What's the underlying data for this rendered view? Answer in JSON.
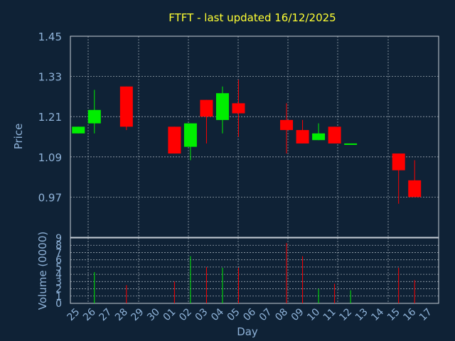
{
  "chart_data": {
    "type": "candlestick",
    "title": "FTFT - last updated 16/12/2025",
    "xlabel": "Day",
    "price_panel": {
      "ylabel": "Price",
      "ylim": [
        0.85,
        1.45
      ],
      "yticks": [
        "1.45",
        "1.33",
        "1.21",
        "1.09",
        "0.97"
      ],
      "ytick_values": [
        1.45,
        1.33,
        1.21,
        1.09,
        0.97
      ]
    },
    "volume_panel": {
      "ylabel": "Volume (0000)",
      "ylim": [
        0,
        9
      ],
      "yticks": [
        "9",
        "8",
        "7",
        "6",
        "5",
        "4",
        "3",
        "2",
        "1",
        "0"
      ]
    },
    "x_ticks": [
      "25",
      "26",
      "27",
      "28",
      "29",
      "30",
      "01",
      "02",
      "03",
      "04",
      "05",
      "06",
      "07",
      "08",
      "09",
      "10",
      "11",
      "12",
      "13",
      "14",
      "15",
      "16",
      "17"
    ],
    "colors": {
      "up": "#00ee00",
      "down": "#ff0000",
      "background": "#0f2236",
      "text": "#8fb3d9",
      "title": "#ffff33"
    },
    "candles": [
      {
        "day": "25",
        "open": 1.16,
        "high": 1.18,
        "low": 1.16,
        "close": 1.18,
        "volume": 0
      },
      {
        "day": "26",
        "open": 1.19,
        "high": 1.29,
        "low": 1.16,
        "close": 1.23,
        "volume": 4.3
      },
      {
        "day": "28",
        "open": 1.3,
        "high": 1.3,
        "low": 1.17,
        "close": 1.18,
        "volume": 2.5
      },
      {
        "day": "01",
        "open": 1.18,
        "high": 1.18,
        "low": 1.1,
        "close": 1.1,
        "volume": 3.0
      },
      {
        "day": "02",
        "open": 1.12,
        "high": 1.19,
        "low": 1.08,
        "close": 1.19,
        "volume": 6.5
      },
      {
        "day": "03",
        "open": 1.26,
        "high": 1.26,
        "low": 1.13,
        "close": 1.21,
        "volume": 5.0
      },
      {
        "day": "04",
        "open": 1.2,
        "high": 1.3,
        "low": 1.16,
        "close": 1.28,
        "volume": 4.9
      },
      {
        "day": "05",
        "open": 1.25,
        "high": 1.32,
        "low": 1.15,
        "close": 1.22,
        "volume": 4.9
      },
      {
        "day": "08",
        "open": 1.2,
        "high": 1.25,
        "low": 1.1,
        "close": 1.17,
        "volume": 8.3
      },
      {
        "day": "09",
        "open": 1.17,
        "high": 1.2,
        "low": 1.13,
        "close": 1.13,
        "volume": 6.5
      },
      {
        "day": "10",
        "open": 1.14,
        "high": 1.19,
        "low": 1.14,
        "close": 1.16,
        "volume": 2.0
      },
      {
        "day": "11",
        "open": 1.18,
        "high": 1.18,
        "low": 1.13,
        "close": 1.13,
        "volume": 2.7
      },
      {
        "day": "12",
        "open": 1.13,
        "high": 1.13,
        "low": 1.13,
        "close": 1.13,
        "volume": 1.8
      },
      {
        "day": "15",
        "open": 1.1,
        "high": 1.1,
        "low": 0.95,
        "close": 1.05,
        "volume": 4.9
      },
      {
        "day": "16",
        "open": 1.02,
        "high": 1.08,
        "low": 0.97,
        "close": 0.97,
        "volume": 3.2
      }
    ]
  }
}
